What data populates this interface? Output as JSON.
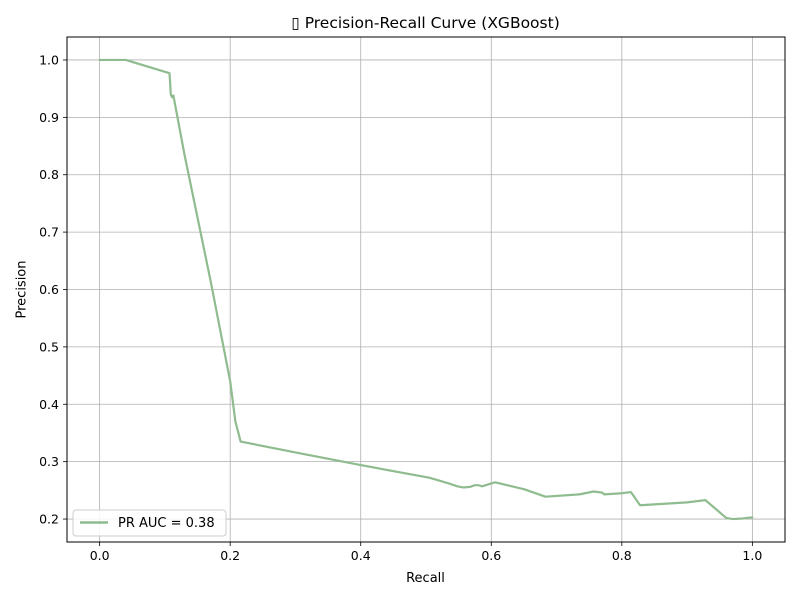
{
  "chart_data": {
    "type": "line",
    "title": "▯ Precision-Recall Curve (XGBoost)",
    "xlabel": "Recall",
    "ylabel": "Precision",
    "xlim": [
      -0.05,
      1.05
    ],
    "ylim": [
      0.16,
      1.04
    ],
    "xticks": [
      0.0,
      0.2,
      0.4,
      0.6,
      0.8,
      1.0
    ],
    "xtick_labels": [
      "0.0",
      "0.2",
      "0.4",
      "0.6",
      "0.8",
      "1.0"
    ],
    "yticks": [
      0.2,
      0.3,
      0.4,
      0.5,
      0.6,
      0.7,
      0.8,
      0.9,
      1.0
    ],
    "ytick_labels": [
      "0.2",
      "0.3",
      "0.4",
      "0.5",
      "0.6",
      "0.7",
      "0.8",
      "0.9",
      "1.0"
    ],
    "grid": true,
    "legend_position": "lower-left",
    "series": [
      {
        "name": "PR AUC = 0.38",
        "color": "#8fbc8f",
        "x": [
          0.0,
          0.04,
          0.107,
          0.108,
          0.109,
          0.111,
          0.113,
          0.13,
          0.17,
          0.2,
          0.208,
          0.216,
          0.3,
          0.4,
          0.505,
          0.535,
          0.548,
          0.557,
          0.567,
          0.575,
          0.58,
          0.586,
          0.6,
          0.606,
          0.65,
          0.683,
          0.735,
          0.757,
          0.77,
          0.773,
          0.8,
          0.814,
          0.828,
          0.9,
          0.928,
          0.96,
          0.97,
          0.985,
          1.0
        ],
        "y": [
          1.0,
          1.0,
          0.977,
          0.96,
          0.94,
          0.935,
          0.938,
          0.835,
          0.615,
          0.44,
          0.37,
          0.335,
          0.316,
          0.294,
          0.272,
          0.262,
          0.257,
          0.255,
          0.256,
          0.259,
          0.259,
          0.257,
          0.262,
          0.264,
          0.252,
          0.239,
          0.243,
          0.248,
          0.246,
          0.243,
          0.245,
          0.247,
          0.224,
          0.229,
          0.233,
          0.202,
          0.2,
          0.201,
          0.203
        ]
      }
    ]
  }
}
